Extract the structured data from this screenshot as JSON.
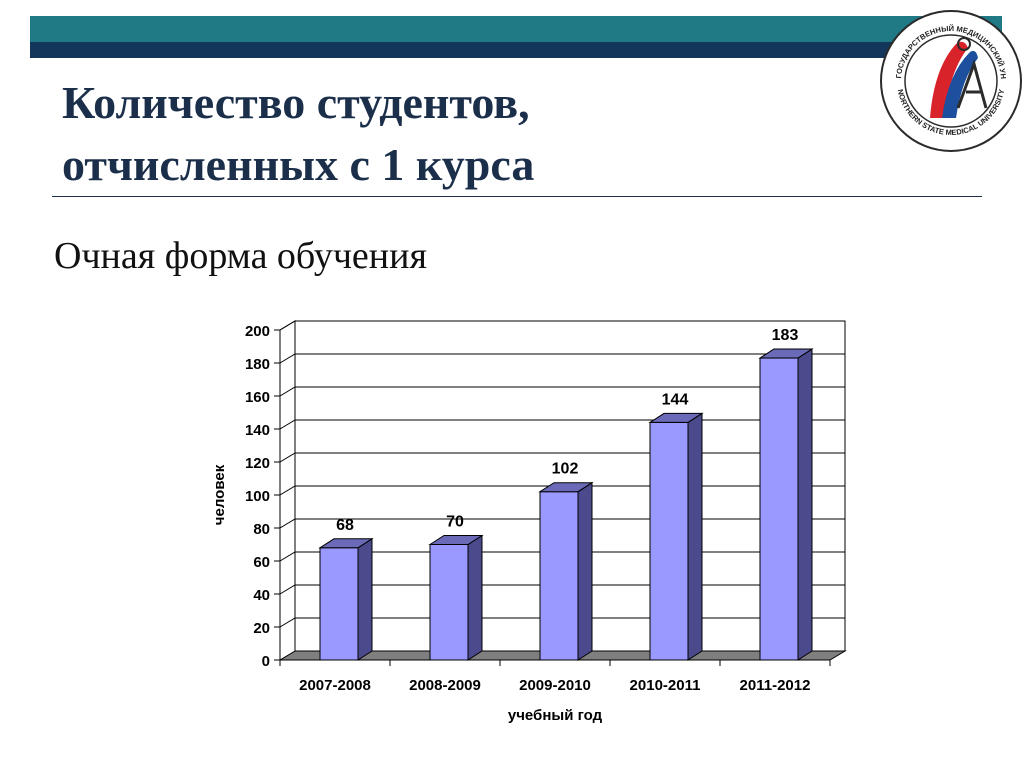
{
  "slide": {
    "title_line1": "Количество студентов,",
    "title_line2": "отчисленных с 1 курса",
    "subtitle": "Очная форма обучения"
  },
  "logo": {
    "text_top": "СЕВЕРНЫЙ ГОСУДАРСТВЕННЫЙ МЕДИЦИНСКИЙ УНИВЕРСИТЕТ",
    "text_bottom": "NORTHERN STATE MEDICAL UNIVERSITY"
  },
  "colors": {
    "header_teal": "#1f7a86",
    "header_navy": "#14365a",
    "bar_front": "#9999ff",
    "bar_side": "#4a4a8c",
    "bar_top": "#6a6ab8"
  },
  "chart_data": {
    "type": "bar",
    "categories": [
      "2007-2008",
      "2008-2009",
      "2009-2010",
      "2010-2011",
      "2011-2012"
    ],
    "values": [
      68,
      70,
      102,
      144,
      183
    ],
    "data_labels": [
      "68",
      "70",
      "102",
      "144",
      "183"
    ],
    "title": "",
    "xlabel": "учебный год",
    "ylabel": "человек",
    "ylim": [
      0,
      200
    ],
    "yticks": [
      "0",
      "20",
      "40",
      "60",
      "80",
      "100",
      "120",
      "140",
      "160",
      "180",
      "200"
    ],
    "grid": true,
    "style": "3d"
  }
}
